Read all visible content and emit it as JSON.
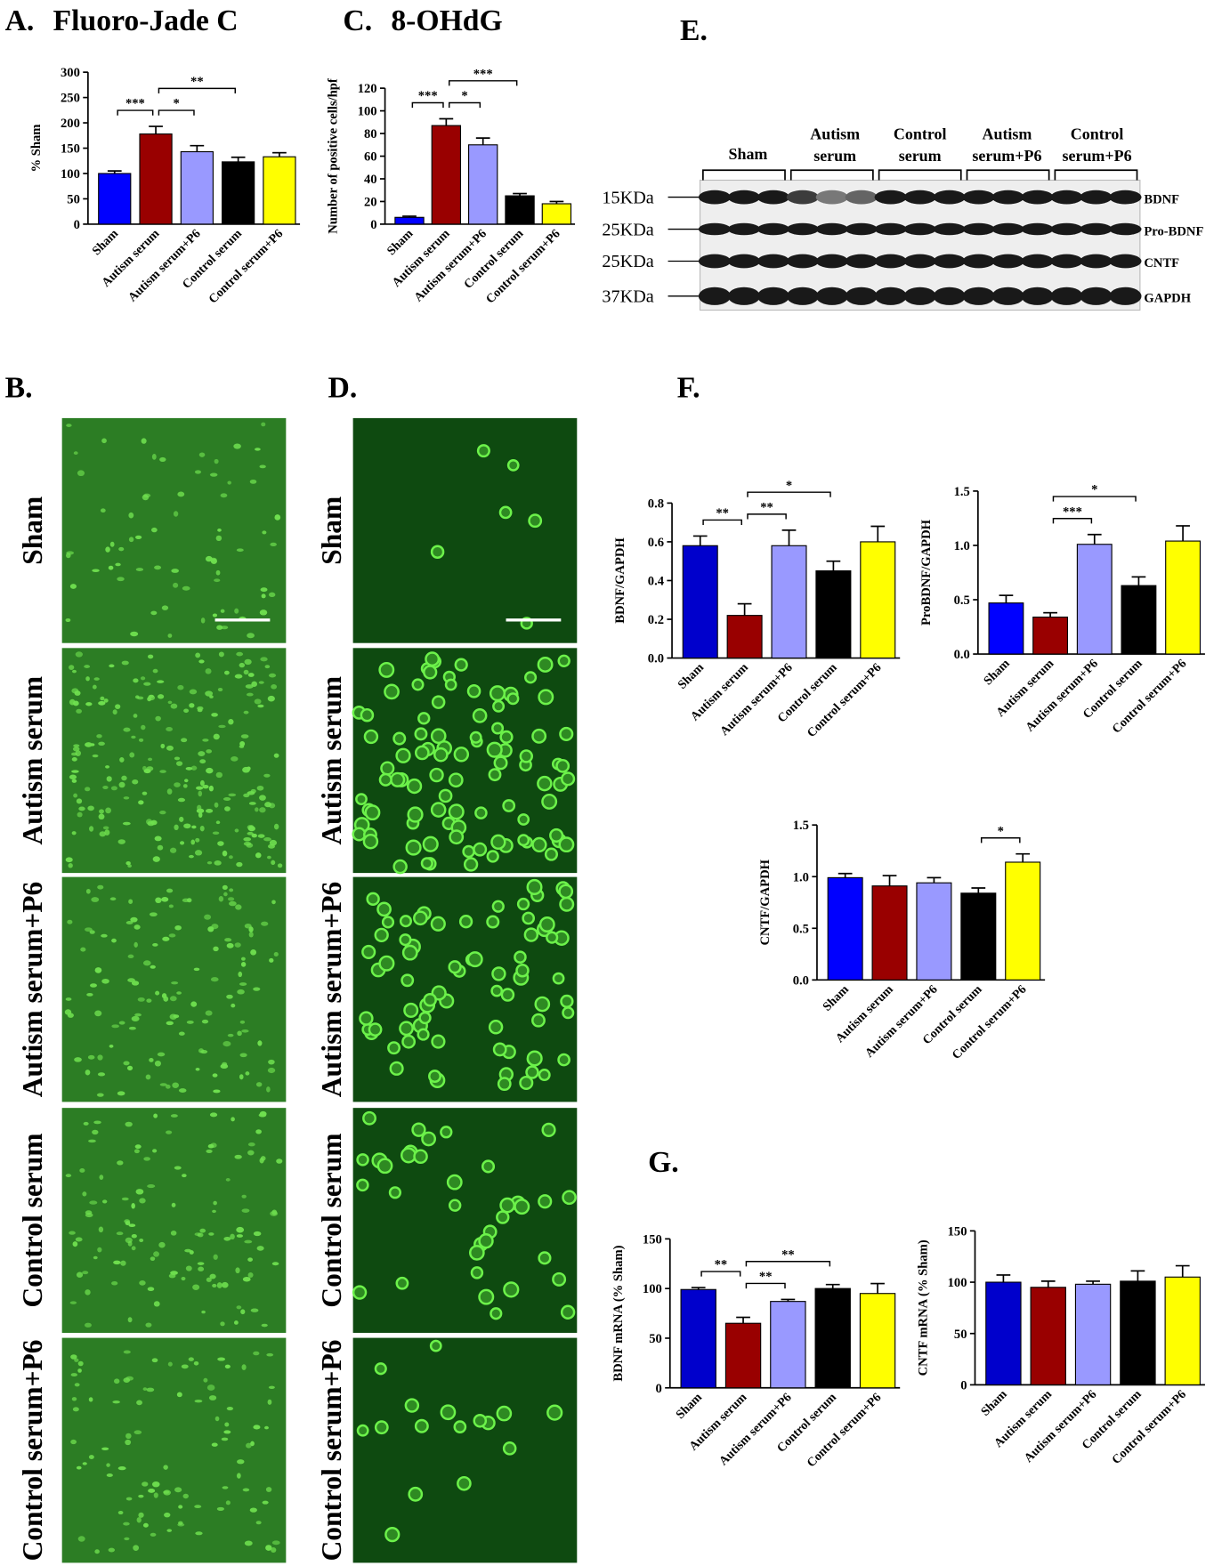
{
  "chart_data": [
    {
      "type": "bar",
      "panel": "A.",
      "title": "Fluoro-Jade C",
      "ylabel": "% Sham",
      "categories": [
        "Sham",
        "Autism serum",
        "Autism serum+P6",
        "Control serum",
        "Control serum+P6"
      ],
      "values": [
        100,
        178,
        143,
        123,
        133
      ],
      "errors": [
        5,
        15,
        12,
        9,
        8
      ],
      "colors": [
        "#0000ff",
        "#990000",
        "#9999ff",
        "#000000",
        "#ffff00"
      ],
      "ylim": [
        0,
        300
      ],
      "yticks": [
        0,
        50,
        100,
        150,
        200,
        250,
        300
      ],
      "brackets": [
        {
          "label": "***",
          "from": 0,
          "to": 1
        },
        {
          "label": "*",
          "from": 1,
          "to": 2
        },
        {
          "label": "**",
          "from": 1,
          "to": 3
        }
      ]
    },
    {
      "type": "bar",
      "panel": "C.",
      "title": "8-OHdG",
      "ylabel": "Number of positive cells/hpf",
      "categories": [
        "Sham",
        "Autism serum",
        "Autism serum+P6",
        "Control serum",
        "Control serum+P6"
      ],
      "values": [
        6,
        87,
        70,
        25,
        18
      ],
      "errors": [
        1,
        6,
        6,
        2,
        2
      ],
      "colors": [
        "#0000ff",
        "#990000",
        "#9999ff",
        "#000000",
        "#ffff00"
      ],
      "ylim": [
        0,
        120
      ],
      "yticks": [
        0,
        20,
        40,
        60,
        80,
        100,
        120
      ],
      "brackets": [
        {
          "label": "***",
          "from": 0,
          "to": 1
        },
        {
          "label": "*",
          "from": 1,
          "to": 2
        },
        {
          "label": "***",
          "from": 1,
          "to": 3
        }
      ]
    },
    {
      "type": "bar",
      "ylabel": "BDNF/GAPDH",
      "categories": [
        "Sham",
        "Autism serum",
        "Autism serum+P6",
        "Control serum",
        "Control serum+P6"
      ],
      "values": [
        0.58,
        0.22,
        0.58,
        0.45,
        0.6
      ],
      "errors": [
        0.05,
        0.06,
        0.08,
        0.05,
        0.08
      ],
      "colors": [
        "#0000cc",
        "#990000",
        "#9999ff",
        "#000000",
        "#ffff00"
      ],
      "ylim": [
        0,
        0.8
      ],
      "yticks": [
        {
          "value": 0,
          "label": "0.0"
        },
        0.2,
        0.4,
        0.6,
        0.8
      ],
      "brackets": [
        {
          "label": "**",
          "from": 0,
          "to": 1
        },
        {
          "label": "**",
          "from": 1,
          "to": 2
        },
        {
          "label": "*",
          "from": 1,
          "to": 3
        }
      ]
    },
    {
      "type": "bar",
      "ylabel": "ProBDNF/GAPDH",
      "categories": [
        "Sham",
        "Autism serum",
        "Autism serum+P6",
        "Control serum",
        "Control serum+P6"
      ],
      "values": [
        0.47,
        0.34,
        1.01,
        0.63,
        1.04
      ],
      "errors": [
        0.07,
        0.04,
        0.09,
        0.08,
        0.14
      ],
      "colors": [
        "#0000ff",
        "#990000",
        "#9999ff",
        "#000000",
        "#ffff00"
      ],
      "ylim": [
        0,
        1.5
      ],
      "yticks": [
        {
          "value": 0,
          "label": "0.0"
        },
        0.5,
        {
          "value": 1,
          "label": "1.0"
        },
        1.5
      ],
      "brackets": [
        {
          "label": "***",
          "from": 1,
          "to": 2
        },
        {
          "label": "*",
          "from": 1,
          "to": 3
        }
      ]
    },
    {
      "type": "bar",
      "ylabel": "CNTF/GAPDH",
      "categories": [
        "Sham",
        "Autism serum",
        "Autism serum+P6",
        "Control serum",
        "Control serum+P6"
      ],
      "values": [
        0.99,
        0.91,
        0.94,
        0.84,
        1.14
      ],
      "errors": [
        0.04,
        0.1,
        0.05,
        0.05,
        0.08
      ],
      "colors": [
        "#0000ff",
        "#990000",
        "#9999ff",
        "#000000",
        "#ffff00"
      ],
      "ylim": [
        0,
        1.5
      ],
      "yticks": [
        {
          "value": 0,
          "label": "0.0"
        },
        0.5,
        {
          "value": 1,
          "label": "1.0"
        },
        1.5
      ],
      "brackets": [
        {
          "label": "*",
          "from": 3,
          "to": 4
        }
      ]
    },
    {
      "type": "bar",
      "ylabel": "BDNF mRNA (% Sham)",
      "categories": [
        "Sham",
        "Autism serum",
        "Autism serum+P6",
        "Control serum",
        "Control serum+P6"
      ],
      "values": [
        99,
        65,
        87,
        100,
        95
      ],
      "errors": [
        2,
        6,
        2,
        4,
        10
      ],
      "colors": [
        "#0000cc",
        "#990000",
        "#9999ff",
        "#000000",
        "#ffff00"
      ],
      "ylim": [
        0,
        150
      ],
      "yticks": [
        0,
        50,
        100,
        150
      ],
      "brackets": [
        {
          "label": "**",
          "from": 0,
          "to": 1
        },
        {
          "label": "**",
          "from": 1,
          "to": 2
        },
        {
          "label": "**",
          "from": 1,
          "to": 3
        }
      ]
    },
    {
      "type": "bar",
      "ylabel": "CNTF mRNA (% Sham)",
      "categories": [
        "Sham",
        "Autism serum",
        "Autism serum+P6",
        "Control serum",
        "Control serum+P6"
      ],
      "values": [
        100,
        95,
        98,
        101,
        105
      ],
      "errors": [
        7,
        6,
        3,
        10,
        11
      ],
      "colors": [
        "#0000cc",
        "#990000",
        "#9999ff",
        "#000000",
        "#ffff00"
      ],
      "ylim": [
        0,
        150
      ],
      "yticks": [
        0,
        50,
        100,
        150
      ],
      "brackets": []
    }
  ],
  "blot": {
    "panel": "E.",
    "groups": [
      [
        "Sham"
      ],
      [
        "Autism",
        "serum"
      ],
      [
        "Control",
        "serum"
      ],
      [
        "Autism",
        "serum+P6"
      ],
      [
        "Control",
        "serum+P6"
      ]
    ],
    "markers": [
      "15KDa",
      "25KDa",
      "25KDa",
      "37KDa"
    ],
    "bands": [
      "BDNF",
      "Pro-BDNF",
      "CNTF",
      "GAPDH"
    ]
  },
  "micrographs": [
    {
      "panel": "B.",
      "rows": [
        "Sham",
        "Autism serum",
        "Autism serum+P6",
        "Control serum",
        "Control serum+P6"
      ]
    },
    {
      "panel": "D.",
      "rows": [
        "Sham",
        "Autism serum",
        "Autism serum+P6",
        "Control serum",
        "Control serum+P6"
      ]
    }
  ],
  "panel_labels": [
    "F.",
    "G."
  ]
}
